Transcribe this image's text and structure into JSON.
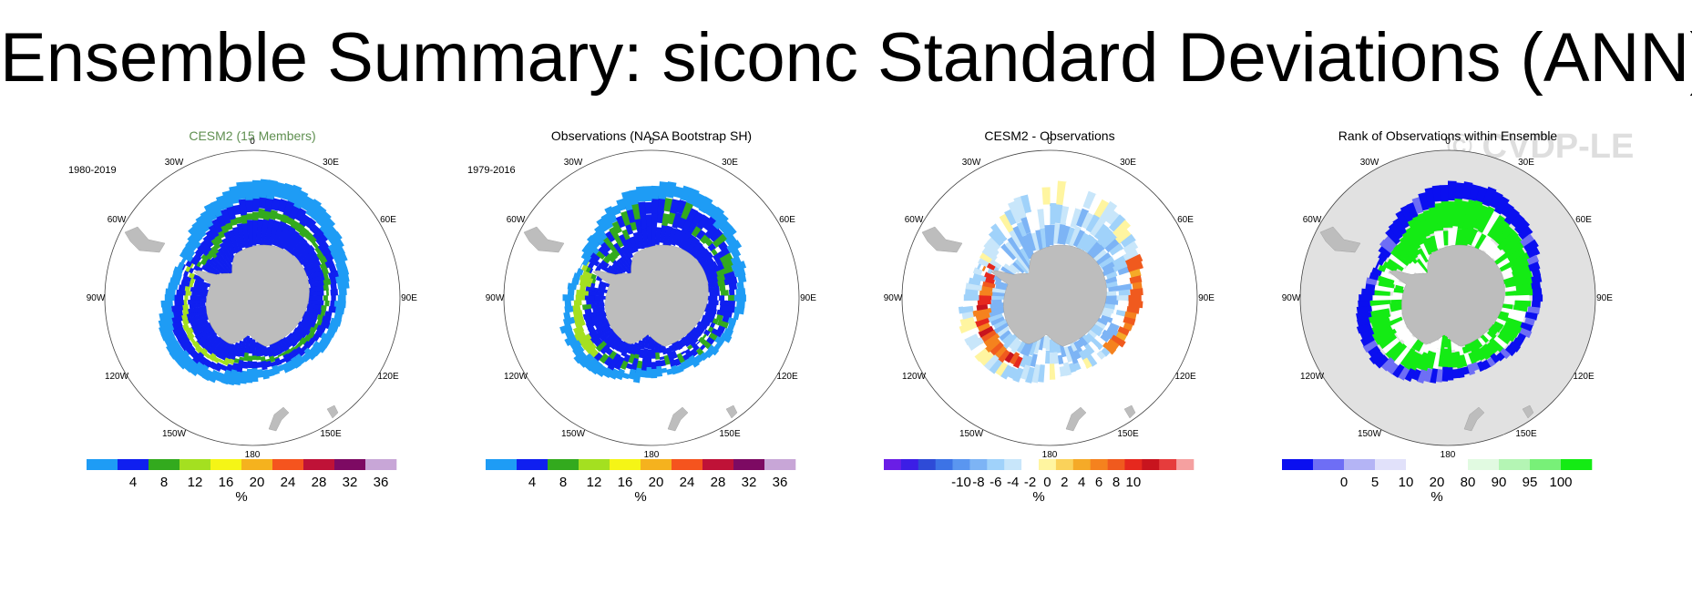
{
  "title": "Ensemble Summary: siconc Standard Deviations (ANN)",
  "watermark": "© CVDP-LE",
  "longitude_labels": [
    "0",
    "30E",
    "60E",
    "90E",
    "120E",
    "150E",
    "180",
    "150W",
    "120W",
    "90W",
    "60W",
    "30W"
  ],
  "colors": {
    "land": "#bdbdbd",
    "ocean_title_green": "#5f8f50",
    "rank_background": "#e1e1e1"
  },
  "panels": [
    {
      "title": "CESM2 (15 Members)",
      "title_color": "#5f8f50",
      "period": "1980-2019",
      "field": "model_std",
      "colorbar": {
        "colors": [
          "#1e9cf5",
          "#0f1ff0",
          "#33aa1e",
          "#a4e020",
          "#f5f516",
          "#f5b21e",
          "#f5541e",
          "#bf1237",
          "#7d0a63",
          "#c8a6d7"
        ],
        "labels": [
          "4",
          "8",
          "12",
          "16",
          "20",
          "24",
          "28",
          "32",
          "36"
        ],
        "unit": "%"
      }
    },
    {
      "title": "Observations (NASA Bootstrap SH)",
      "title_color": "#000000",
      "period": "1979-2016",
      "field": "obs_std",
      "colorbar": {
        "colors": [
          "#1e9cf5",
          "#0f1ff0",
          "#33aa1e",
          "#a4e020",
          "#f5f516",
          "#f5b21e",
          "#f5541e",
          "#bf1237",
          "#7d0a63",
          "#c8a6d7"
        ],
        "labels": [
          "4",
          "8",
          "12",
          "16",
          "20",
          "24",
          "28",
          "32",
          "36"
        ],
        "unit": "%"
      }
    },
    {
      "title": "CESM2 - Observations",
      "title_color": "#000000",
      "period": "",
      "field": "difference",
      "colorbar": {
        "colors": [
          "#6a1ee6",
          "#3c1ee6",
          "#2e4bd7",
          "#3c73e6",
          "#5a96f0",
          "#7db4f5",
          "#a0d2fa",
          "#c8e6fa",
          "#ffffff",
          "#fff5a0",
          "#fad25a",
          "#f5aa28",
          "#f5821e",
          "#f05a1e",
          "#e6281e",
          "#c8141e",
          "#e63c3c",
          "#f5a0a0"
        ],
        "labels": [
          "-10",
          "-8",
          "-6",
          "-4",
          "-2",
          "0",
          "2",
          "4",
          "6",
          "8",
          "10"
        ],
        "unit": "%"
      }
    },
    {
      "title": "Rank of Observations within Ensemble",
      "title_color": "#000000",
      "period": "",
      "field": "rank",
      "colorbar": {
        "colors": [
          "#0a0ff0",
          "#6e6ef5",
          "#b4b4f5",
          "#e1e1fa",
          "#ffffff",
          "#ffffff",
          "#e1fae1",
          "#b4f5b4",
          "#78f078",
          "#14eb14"
        ],
        "labels": [
          "0",
          "5",
          "10",
          "20",
          "80",
          "90",
          "95",
          "100"
        ],
        "unit": "%"
      }
    }
  ]
}
